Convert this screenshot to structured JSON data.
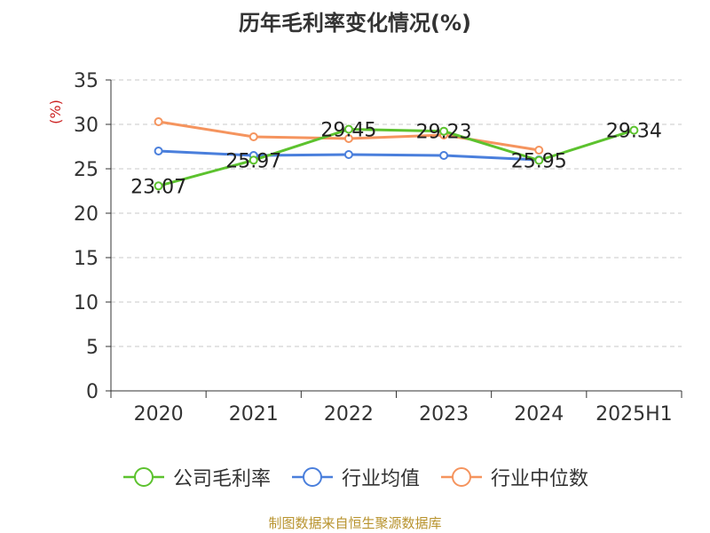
{
  "chart_data": {
    "type": "line",
    "title": "历年毛利率变化情况(%)",
    "ylabel": "(%)",
    "xlabel": "",
    "categories": [
      "2020",
      "2021",
      "2022",
      "2023",
      "2024",
      "2025H1"
    ],
    "ylim": [
      0,
      35
    ],
    "yticks": [
      0,
      5,
      10,
      15,
      20,
      25,
      30,
      35
    ],
    "grid": true,
    "legend_position": "bottom",
    "series": [
      {
        "name": "公司毛利率",
        "color": "#5cc22e",
        "values": [
          23.07,
          25.97,
          29.45,
          29.23,
          25.95,
          29.34
        ],
        "data_labels": [
          "23.07",
          "25.97",
          "29.45",
          "29.23",
          "25.95",
          "29.34"
        ]
      },
      {
        "name": "行业均值",
        "color": "#4a7fdc",
        "values": [
          27.0,
          26.5,
          26.6,
          26.5,
          26.0,
          null
        ]
      },
      {
        "name": "行业中位数",
        "color": "#f5945e",
        "values": [
          30.3,
          28.6,
          28.4,
          28.8,
          27.1,
          null
        ]
      }
    ]
  },
  "footer": {
    "source": "制图数据来自恒生聚源数据库"
  }
}
